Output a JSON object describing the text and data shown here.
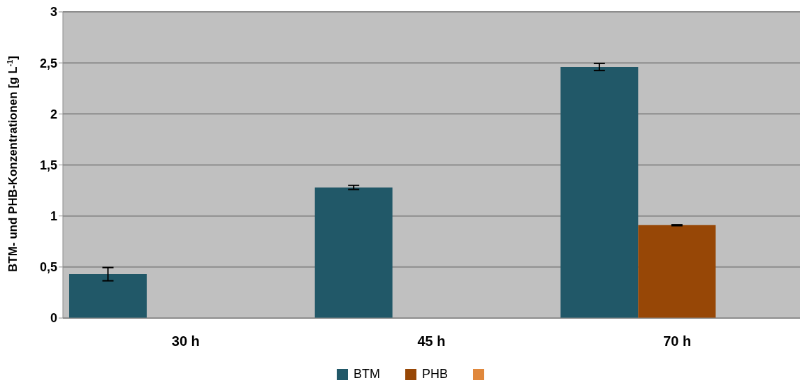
{
  "chart_data": {
    "type": "bar",
    "ylabel": "BTM- und PHB-Konzentrationen [g L$^{-1}$]",
    "categories": [
      "30 h",
      "45 h",
      "70 h"
    ],
    "series": [
      {
        "name": "BTM",
        "color": "#215868",
        "values": [
          0.43,
          1.28,
          2.46
        ],
        "errors": [
          0.065,
          0.02,
          0.035
        ]
      },
      {
        "name": "PHB",
        "color": "#974706",
        "values": [
          null,
          null,
          0.91
        ],
        "errors": [
          null,
          null,
          0.005
        ]
      },
      {
        "color": "#e0883c",
        "values": [
          null,
          null,
          null
        ]
      }
    ],
    "ylim": [
      0,
      3
    ],
    "yticks": [
      0,
      {
        "value": 0.5,
        "label": "0,5"
      },
      1,
      {
        "value": 1.5,
        "label": "1,5"
      },
      2,
      {
        "value": 2.5,
        "label": "2,5"
      },
      3
    ],
    "grid": "y",
    "legend": "bottom"
  }
}
